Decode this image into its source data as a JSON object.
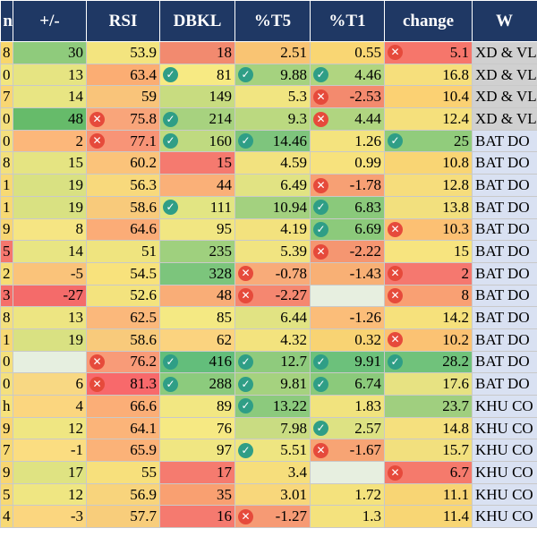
{
  "columns": [
    "n",
    "+/-",
    "RSI",
    "DBKL",
    "%T5",
    "%T1",
    "change",
    "W"
  ],
  "rows": [
    {
      "n": "8",
      "pm": "30",
      "rsi": "53.9",
      "dbkl": "18",
      "t5": "2.51",
      "t1": "0.55",
      "chg": "5.1",
      "w": "XD & VL",
      "c": [
        "#f8d66b",
        "#8fcb7c",
        "#f3e47f",
        "#f28a6f",
        "#f9c473",
        "#f9d673",
        "#f6766b",
        "#d0d0d0"
      ],
      "i": {
        "chg": "cross"
      }
    },
    {
      "n": "0",
      "pm": "13",
      "rsi": "63.4",
      "dbkl": "81",
      "t5": "9.88",
      "t1": "4.46",
      "chg": "16.8",
      "w": "XD & VL",
      "c": [
        "#f2e67f",
        "#e6e482",
        "#fbad73",
        "#f7ea83",
        "#a5d27f",
        "#b0d580",
        "#f6df7c",
        "#d0d0d0"
      ],
      "i": {
        "dbkl": "check",
        "t5": "check",
        "t1": "check"
      }
    },
    {
      "n": "7",
      "pm": "14",
      "rsi": "59",
      "dbkl": "149",
      "t5": "5.3",
      "t1": "-2.53",
      "chg": "10.4",
      "w": "XD & VL",
      "c": [
        "#f9d673",
        "#e8e583",
        "#f9c47a",
        "#c8dc80",
        "#f1e581",
        "#f38a6e",
        "#fbd173",
        "#d0d0d0"
      ],
      "i": {
        "t1": "cross"
      }
    },
    {
      "n": "0",
      "pm": "48",
      "rsi": "75.8",
      "dbkl": "214",
      "t5": "9.3",
      "t1": "4.44",
      "chg": "12.4",
      "w": "XD & VL",
      "c": [
        "#f4e07e",
        "#66bb6a",
        "#f9a57a",
        "#a7d27f",
        "#bbd980",
        "#b0d580",
        "#f5e07c",
        "#d0d0d0"
      ],
      "i": {
        "rsi": "cross",
        "dbkl": "check",
        "t1": "cross"
      }
    },
    {
      "n": "0",
      "pm": "2",
      "rsi": "77.1",
      "dbkl": "160",
      "t5": "14.46",
      "t1": "1.26",
      "chg": "25",
      "w": "BAT DO",
      "c": [
        "#f4e07e",
        "#fcb77a",
        "#f89477",
        "#bfda80",
        "#7ec57d",
        "#f4e37e",
        "#91cc7c",
        "#d9e1f2"
      ],
      "i": {
        "rsi": "cross",
        "dbkl": "check",
        "t5": "check",
        "chg": "check"
      }
    },
    {
      "n": "8",
      "pm": "15",
      "rsi": "60.2",
      "dbkl": "15",
      "t5": "4.59",
      "t1": "0.99",
      "chg": "10.8",
      "w": "BAT DO",
      "c": [
        "#f3e07d",
        "#e5e482",
        "#fbc37a",
        "#f57a6f",
        "#f2e27f",
        "#f7e27d",
        "#f9d574",
        "#d9e1f2"
      ],
      "i": {}
    },
    {
      "n": "1",
      "pm": "19",
      "rsi": "56.3",
      "dbkl": "44",
      "t5": "6.49",
      "t1": "-1.78",
      "chg": "12.8",
      "w": "BAT DO",
      "c": [
        "#f7d974",
        "#d9e182",
        "#f8d97c",
        "#fab078",
        "#e1e383",
        "#f7a074",
        "#f6dd7c",
        "#d9e1f2"
      ],
      "i": {
        "t1": "cross"
      }
    },
    {
      "n": "1",
      "pm": "19",
      "rsi": "58.6",
      "dbkl": "111",
      "t5": "10.94",
      "t1": "6.83",
      "chg": "13.8",
      "w": "BAT DO",
      "c": [
        "#f7d974",
        "#d9e182",
        "#f8ca7b",
        "#e2e583",
        "#a3d17f",
        "#8ac97b",
        "#f2e07e",
        "#d9e1f2"
      ],
      "i": {
        "dbkl": "check",
        "t1": "check"
      }
    },
    {
      "n": "9",
      "pm": "8",
      "rsi": "64.6",
      "dbkl": "95",
      "t5": "4.19",
      "t1": "6.69",
      "chg": "10.3",
      "w": "BAT DO",
      "c": [
        "#f8d673",
        "#f6e583",
        "#fbac77",
        "#f1e682",
        "#f3e27e",
        "#8cca7b",
        "#fcc073",
        "#d9e1f2"
      ],
      "i": {
        "t1": "check",
        "chg": "cross"
      }
    },
    {
      "n": "5",
      "pm": "14",
      "rsi": "51",
      "dbkl": "235",
      "t5": "5.39",
      "t1": "-2.22",
      "chg": "15",
      "w": "BAT DO",
      "c": [
        "#f5776e",
        "#e8e583",
        "#efe47f",
        "#9fd07e",
        "#f1e481",
        "#f59671",
        "#f7e47f",
        "#d9e1f2"
      ],
      "i": {
        "t1": "cross"
      }
    },
    {
      "n": "2",
      "pm": "-5",
      "rsi": "54.5",
      "dbkl": "328",
      "t5": "-0.78",
      "t1": "-1.43",
      "chg": "2",
      "w": "BAT DO",
      "c": [
        "#f7dd74",
        "#fac37a",
        "#f8e27c",
        "#7cc57c",
        "#f8ab79",
        "#f8b075",
        "#f5786f",
        "#d9e1f2"
      ],
      "i": {
        "t5": "cross",
        "chg": "cross"
      }
    },
    {
      "n": "3",
      "pm": "-27",
      "rsi": "52.6",
      "dbkl": "48",
      "t5": "-2.27",
      "t1": "",
      "chg": "8",
      "w": "BAT DO",
      "c": [
        "#f56f6a",
        "#f46b6a",
        "#f3e37e",
        "#f9ad77",
        "#f58770",
        "#e7efe0",
        "#f9a073",
        "#d9e1f2"
      ],
      "i": {
        "t5": "cross",
        "chg": "cross"
      }
    },
    {
      "n": "8",
      "pm": "13",
      "rsi": "62.5",
      "dbkl": "85",
      "t5": "6.44",
      "t1": "-1.26",
      "chg": "14.2",
      "w": "BAT DO",
      "c": [
        "#f3e07e",
        "#ede582",
        "#fbb87b",
        "#f4e983",
        "#e1e383",
        "#fbbd79",
        "#f6e17c",
        "#d9e1f2"
      ],
      "i": {}
    },
    {
      "n": "1",
      "pm": "19",
      "rsi": "58.6",
      "dbkl": "62",
      "t5": "4.32",
      "t1": "0.32",
      "chg": "10.2",
      "w": "BAT DO",
      "c": [
        "#f7d974",
        "#d9e182",
        "#f8ca7b",
        "#fbd37f",
        "#f3e37e",
        "#f8d373",
        "#fbc273",
        "#d9e1f2"
      ],
      "i": {
        "chg": "cross"
      }
    },
    {
      "n": "0",
      "pm": "",
      "rsi": "76.2",
      "dbkl": "416",
      "t5": "12.7",
      "t1": "9.91",
      "chg": "28.2",
      "w": "BAT DO",
      "c": [
        "#f4e07e",
        "#e6efe0",
        "#f89b78",
        "#63be7b",
        "#8fcb7d",
        "#6cc17b",
        "#70c27b",
        "#d9e1f2"
      ],
      "i": {
        "rsi": "cross",
        "dbkl": "check",
        "t5": "check",
        "t1": "check",
        "chg": "check"
      }
    },
    {
      "n": "0",
      "pm": "6",
      "rsi": "81.3",
      "dbkl": "288",
      "t5": "9.81",
      "t1": "6.74",
      "chg": "17.6",
      "w": "BAT DO",
      "c": [
        "#f4e07e",
        "#f8d883",
        "#f8696b",
        "#8ccb7d",
        "#a5d27f",
        "#8bca7b",
        "#e7e282",
        "#d9e1f2"
      ],
      "i": {
        "rsi": "cross",
        "dbkl": "check",
        "t5": "check",
        "t1": "check"
      }
    },
    {
      "n": "h",
      "pm": "4",
      "rsi": "66.6",
      "dbkl": "89",
      "t5": "13.22",
      "t1": "1.83",
      "chg": "23.7",
      "w": "KHU CO",
      "c": [
        "#f7e27c",
        "#fbd67f",
        "#fbae77",
        "#f2e782",
        "#8cca7d",
        "#f1e37e",
        "#a0cf7f",
        "#d9e1f2"
      ],
      "i": {
        "t5": "check"
      }
    },
    {
      "n": "9",
      "pm": "12",
      "rsi": "64.1",
      "dbkl": "76",
      "t5": "7.98",
      "t1": "2.57",
      "chg": "14.8",
      "w": "KHU CO",
      "c": [
        "#f9d673",
        "#efe682",
        "#fbb479",
        "#f6e983",
        "#c9dc82",
        "#dde283",
        "#f5e07e",
        "#d9e1f2"
      ],
      "i": {
        "t1": "check"
      }
    },
    {
      "n": "7",
      "pm": "-1",
      "rsi": "65.9",
      "dbkl": "97",
      "t5": "5.51",
      "t1": "-1.67",
      "chg": "15.7",
      "w": "KHU CO",
      "c": [
        "#f7d974",
        "#fbdd81",
        "#fbb278",
        "#f0e682",
        "#eee581",
        "#f7a474",
        "#f2e07e",
        "#d9e1f2"
      ],
      "i": {
        "t5": "check",
        "t1": "cross"
      }
    },
    {
      "n": "9",
      "pm": "17",
      "rsi": "55",
      "dbkl": "17",
      "t5": "3.4",
      "t1": "",
      "chg": "6.7",
      "w": "KHU CO",
      "c": [
        "#f8d673",
        "#dfe382",
        "#f7e07c",
        "#f57b6f",
        "#f6de7c",
        "#e7efe0",
        "#f57a6c",
        "#d9e1f2"
      ],
      "i": {
        "chg": "cross"
      }
    },
    {
      "n": "5",
      "pm": "12",
      "rsi": "56.9",
      "dbkl": "35",
      "t5": "3.01",
      "t1": "1.72",
      "chg": "11.1",
      "w": "KHU CO",
      "c": [
        "#f7d974",
        "#efe682",
        "#f8d47c",
        "#f9a071",
        "#f8d77b",
        "#f4e27d",
        "#f8d574",
        "#d9e1f2"
      ],
      "i": {}
    },
    {
      "n": "4",
      "pm": "-3",
      "rsi": "57.7",
      "dbkl": "16",
      "t5": "-1.27",
      "t1": "1.3",
      "chg": "11.4",
      "w": "KHU CO",
      "c": [
        "#f7d974",
        "#fbd67f",
        "#f8cd7b",
        "#f57a6f",
        "#f69a74",
        "#f4e27d",
        "#f8d674",
        "#d9e1f2"
      ],
      "i": {
        "t5": "cross"
      }
    }
  ]
}
